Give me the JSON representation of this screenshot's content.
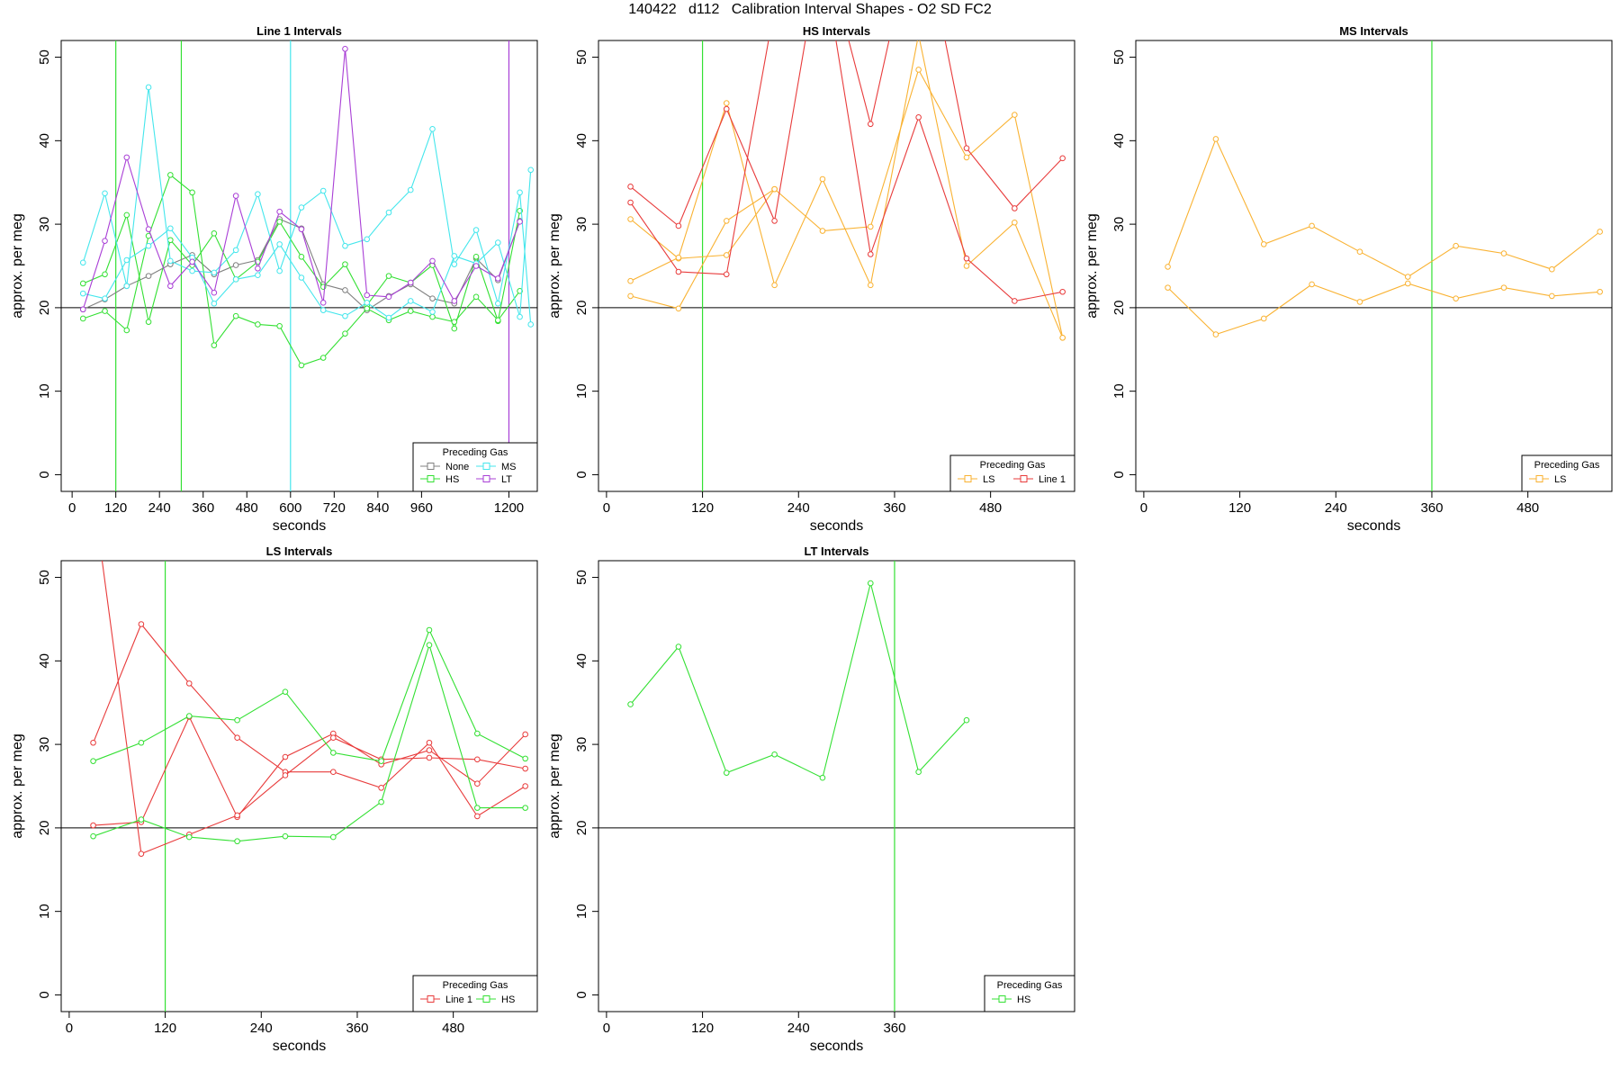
{
  "figure_title": "140422   d112   Calibration Interval Shapes - O2 SD FC2",
  "colors": {
    "None": "#808080",
    "HS": "#33e033",
    "MS": "#44e6ec",
    "LT": "#a93fd6",
    "LS": "#f9b232",
    "Line 1": "#e83b3b",
    "ref_hline": "#000000"
  },
  "chart_data": [
    {
      "type": "line",
      "title": "Line 1 Intervals",
      "xlabel": "seconds",
      "ylabel": "approx. per meg",
      "xlim": [
        -30,
        1278
      ],
      "ylim": [
        -2,
        52
      ],
      "xticks": [
        0,
        120,
        240,
        360,
        480,
        600,
        720,
        840,
        960,
        1200
      ],
      "yticks": [
        0,
        10,
        20,
        30,
        40,
        50
      ],
      "hline": 20,
      "vlines": [
        {
          "x": 120,
          "color": "HS"
        },
        {
          "x": 300,
          "color": "HS"
        },
        {
          "x": 600,
          "color": "MS"
        },
        {
          "x": 1200,
          "color": "LT"
        }
      ],
      "legend": {
        "title": "Preceding Gas",
        "position": "bottom-right",
        "columns": 2,
        "entries": [
          "None",
          "MS",
          "HS",
          "LT"
        ]
      },
      "series": [
        {
          "group": "None",
          "x": [
            30,
            90,
            150,
            210,
            270,
            330,
            390,
            450,
            510,
            570,
            630,
            690,
            750,
            810,
            870,
            930,
            990,
            1050,
            1110,
            1170,
            1230
          ],
          "y": [
            19.8,
            21,
            22.6,
            23.8,
            25.2,
            26.3,
            24,
            25.1,
            25.7,
            30.6,
            29.5,
            22.8,
            22.1,
            19.7,
            21.4,
            22.8,
            21.1,
            20.5,
            25.9,
            23.3,
            30.4
          ]
        },
        {
          "group": "HS",
          "x": [
            30,
            90,
            150,
            210,
            270,
            330,
            390,
            450,
            510,
            570,
            630,
            690,
            750,
            810,
            870,
            930,
            990,
            1050,
            1110,
            1170,
            1230
          ],
          "y": [
            22.9,
            24,
            31.1,
            18.3,
            28.1,
            25.1,
            28.9,
            23.4,
            25.5,
            30.3,
            26.1,
            22.5,
            25.2,
            20.3,
            23.8,
            23,
            25.1,
            17.5,
            26.1,
            18.4,
            31.6
          ]
        },
        {
          "group": "HS",
          "x": [
            30,
            90,
            150,
            210,
            270,
            330,
            390,
            450,
            510,
            570,
            630,
            690,
            750,
            810,
            870,
            930,
            990,
            1050,
            1110,
            1170,
            1230
          ],
          "y": [
            18.7,
            19.6,
            17.3,
            28.6,
            35.9,
            33.8,
            15.5,
            19,
            18,
            17.8,
            13.1,
            14,
            16.9,
            19.9,
            18.5,
            19.6,
            18.9,
            18.3,
            21.3,
            18.5,
            22
          ]
        },
        {
          "group": "MS",
          "x": [
            30,
            90,
            150,
            210,
            270,
            330,
            390,
            450,
            510,
            570,
            630,
            690,
            750,
            810,
            870,
            930,
            990,
            1050,
            1110,
            1170,
            1230,
            1260
          ],
          "y": [
            25.4,
            33.7,
            22.6,
            46.4,
            25.6,
            24.4,
            24.2,
            26.9,
            33.6,
            24.4,
            32,
            34,
            27.4,
            28.2,
            31.4,
            34.1,
            41.4,
            25.2,
            29.3,
            20.5,
            33.8,
            18
          ]
        },
        {
          "group": "MS",
          "x": [
            30,
            90,
            150,
            210,
            270,
            330,
            390,
            450,
            510,
            570,
            630,
            690,
            750,
            810,
            870,
            930,
            990,
            1050,
            1110,
            1170,
            1230,
            1260
          ],
          "y": [
            21.7,
            21.1,
            25.7,
            27.4,
            29.5,
            26,
            20.5,
            23.4,
            23.9,
            27.6,
            23.6,
            19.7,
            19,
            20.6,
            18.8,
            20.8,
            19.5,
            26.2,
            25.3,
            27.8,
            18.9,
            36.5
          ]
        },
        {
          "group": "LT",
          "x": [
            30,
            90,
            150,
            210,
            270,
            330,
            390,
            450,
            510,
            570,
            630,
            690,
            750,
            810,
            870,
            930,
            990,
            1050,
            1110,
            1170,
            1230
          ],
          "y": [
            19.8,
            28,
            38,
            29.4,
            22.6,
            25.5,
            21.8,
            33.4,
            24.7,
            31.5,
            29.4,
            20.6,
            51,
            21.5,
            21.3,
            23,
            25.6,
            20.8,
            25,
            23.5,
            30.3
          ]
        }
      ]
    },
    {
      "type": "line",
      "title": "HS Intervals",
      "xlabel": "seconds",
      "ylabel": "approx. per meg",
      "xlim": [
        -10,
        585
      ],
      "ylim": [
        -2,
        52
      ],
      "xticks": [
        0,
        120,
        240,
        360,
        480
      ],
      "yticks": [
        0,
        10,
        20,
        30,
        40,
        50
      ],
      "hline": 20,
      "vlines": [
        {
          "x": 120,
          "color": "HS"
        }
      ],
      "legend": {
        "title": "Preceding Gas",
        "position": "bottom-right",
        "columns": 2,
        "entries": [
          "LS",
          "Line 1"
        ]
      },
      "series": [
        {
          "group": "LS",
          "x": [
            30,
            90,
            150,
            210,
            270,
            330,
            390,
            450,
            510,
            570
          ],
          "y": [
            30.6,
            25.9,
            26.3,
            34.2,
            29.2,
            29.7,
            48.5,
            38,
            43.1,
            16.4
          ]
        },
        {
          "group": "LS",
          "x": [
            30,
            90,
            150,
            210,
            270,
            330,
            390,
            450,
            510,
            570
          ],
          "y": [
            23.2,
            26,
            44.5,
            22.7,
            35.4,
            22.7,
            52.7,
            25,
            30.2,
            16.4
          ]
        },
        {
          "group": "LS",
          "x": [
            30,
            90,
            150,
            210
          ],
          "y": [
            21.4,
            19.9,
            30.4,
            34.2
          ]
        },
        {
          "group": "Line 1",
          "x": [
            30,
            90,
            150,
            210,
            270,
            330,
            390,
            450,
            510,
            570
          ],
          "y": [
            34.5,
            29.8,
            43.8,
            30.4,
            64,
            42,
            68,
            39.1,
            31.9,
            37.9
          ]
        },
        {
          "group": "Line 1",
          "x": [
            30,
            90,
            150,
            210,
            270,
            330,
            390,
            450,
            510,
            570
          ],
          "y": [
            32.6,
            24.3,
            24,
            56,
            62,
            26.4,
            42.8,
            25.9,
            20.8,
            21.9
          ]
        }
      ]
    },
    {
      "type": "line",
      "title": "MS Intervals",
      "xlabel": "seconds",
      "ylabel": "approx. per meg",
      "xlim": [
        -10,
        585
      ],
      "ylim": [
        -2,
        52
      ],
      "xticks": [
        0,
        120,
        240,
        360,
        480
      ],
      "yticks": [
        0,
        10,
        20,
        30,
        40,
        50
      ],
      "hline": 20,
      "vlines": [
        {
          "x": 360,
          "color": "HS"
        }
      ],
      "legend": {
        "title": "Preceding Gas",
        "position": "bottom-right",
        "columns": 1,
        "entries": [
          "LS"
        ]
      },
      "series": [
        {
          "group": "LS",
          "x": [
            30,
            90,
            150,
            210,
            270,
            330,
            390,
            450,
            510,
            570
          ],
          "y": [
            24.9,
            40.2,
            27.6,
            29.8,
            26.7,
            23.7,
            27.4,
            26.5,
            24.6,
            29.1
          ]
        },
        {
          "group": "LS",
          "x": [
            30,
            90,
            150,
            210,
            270,
            330,
            390,
            450,
            510,
            570
          ],
          "y": [
            22.4,
            16.8,
            18.7,
            22.8,
            20.7,
            22.9,
            21.1,
            22.4,
            21.4,
            21.9
          ]
        }
      ]
    },
    {
      "type": "line",
      "title": "LS Intervals",
      "xlabel": "seconds",
      "ylabel": "approx. per meg",
      "xlim": [
        -10,
        585
      ],
      "ylim": [
        -2,
        52
      ],
      "xticks": [
        0,
        120,
        240,
        360,
        480
      ],
      "yticks": [
        0,
        10,
        20,
        30,
        40,
        50
      ],
      "hline": 20,
      "vlines": [
        {
          "x": 120,
          "color": "HS"
        }
      ],
      "legend": {
        "title": "Preceding Gas",
        "position": "bottom-right",
        "columns": 2,
        "entries": [
          "Line 1",
          "HS"
        ]
      },
      "series": [
        {
          "group": "Line 1",
          "x": [
            30,
            90,
            150,
            210,
            270,
            330,
            390,
            450,
            510,
            570
          ],
          "y": [
            30.2,
            44.4,
            37.3,
            30.8,
            26.7,
            26.7,
            24.8,
            30.2,
            21.4,
            25
          ]
        },
        {
          "group": "Line 1",
          "x": [
            30,
            90,
            150,
            210,
            270,
            330,
            390,
            450,
            510,
            570
          ],
          "y": [
            20.3,
            20.7,
            33.3,
            21.3,
            28.5,
            31.3,
            27.6,
            29.3,
            25.3,
            31.2
          ]
        },
        {
          "group": "Line 1",
          "x": [
            30,
            90,
            150,
            210,
            270,
            330,
            390,
            450,
            510,
            570
          ],
          "y": [
            60,
            16.9,
            19.2,
            21.5,
            26.3,
            30.8,
            28.2,
            28.4,
            28.2,
            27.1
          ]
        },
        {
          "group": "HS",
          "x": [
            30,
            90,
            150,
            210,
            270,
            330,
            390,
            450,
            510,
            570
          ],
          "y": [
            28,
            30.2,
            33.4,
            32.9,
            36.3,
            29,
            28,
            43.7,
            31.3,
            28.3
          ]
        },
        {
          "group": "HS",
          "x": [
            30,
            90,
            150,
            210,
            270,
            330,
            390,
            450,
            510,
            570
          ],
          "y": [
            19,
            21,
            18.9,
            18.4,
            19,
            18.9,
            23.1,
            41.9,
            22.4,
            22.4
          ]
        }
      ]
    },
    {
      "type": "line",
      "title": "LT Intervals",
      "xlabel": "seconds",
      "ylabel": "approx. per meg",
      "xlim": [
        -10,
        585
      ],
      "ylim": [
        -2,
        52
      ],
      "xticks": [
        0,
        120,
        240,
        360
      ],
      "yticks": [
        0,
        10,
        20,
        30,
        40,
        50
      ],
      "hline": 20,
      "vlines": [
        {
          "x": 360,
          "color": "HS"
        }
      ],
      "legend": {
        "title": "Preceding Gas",
        "position": "bottom-right",
        "columns": 1,
        "entries": [
          "HS"
        ]
      },
      "series": [
        {
          "group": "HS",
          "x": [
            30,
            90,
            150,
            210,
            270,
            330,
            390,
            450
          ],
          "y": [
            34.8,
            41.7,
            26.6,
            28.8,
            26,
            49.3,
            26.7,
            32.9
          ]
        }
      ]
    }
  ]
}
